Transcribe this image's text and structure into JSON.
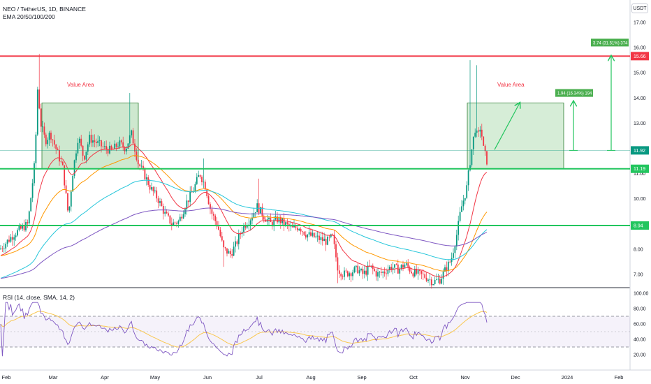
{
  "header": {
    "symbol_line": "NEO / TetherUS, 1D, BINANCE",
    "indicator_line": "EMA 20/50/100/200",
    "currency_button": "USDT"
  },
  "rsi_panel": {
    "title": "RSI (14, close, SMA, 14, 2)",
    "tick_labels": [
      "100.00",
      "80.00",
      "60.00",
      "40.00",
      "20.00"
    ]
  },
  "price_axis": {
    "tick_labels": [
      "17.00",
      "16.00",
      "15.00",
      "14.00",
      "13.00",
      "12.00",
      "11.00",
      "10.00",
      "9.00",
      "8.00",
      "7.00"
    ]
  },
  "time_axis": {
    "tick_labels": [
      "Feb",
      "Mar",
      "Apr",
      "May",
      "Jun",
      "Jul",
      "Aug",
      "Sep",
      "Oct",
      "Nov",
      "Dec",
      "2024",
      "Feb"
    ]
  },
  "annotations": {
    "value_area_left": "Value Area",
    "value_area_right": "Value Area",
    "target_1": "1.94 (16.34%) 194",
    "target_2": "3.74 (31.51%) 374"
  },
  "levels": {
    "resistance": {
      "label": "15.66",
      "value": 15.66,
      "color": "#f23645"
    },
    "last_price": {
      "label": "11.92",
      "value": 11.92,
      "color": "#089981"
    },
    "support_high": {
      "label": "11.19",
      "value": 11.19,
      "color": "#22c55e"
    },
    "support_low": {
      "label": "8.94",
      "value": 8.94,
      "color": "#22c55e"
    }
  },
  "colors": {
    "up_candle": "#089981",
    "down_candle": "#f23645",
    "ema20": "#f23645",
    "ema50": "#ff9800",
    "ema100": "#26c6da",
    "ema200": "#7e57c2",
    "rsi_line": "#7e57c2",
    "rsi_ma": "#f9c74f",
    "value_area_fill": "#a5d6a7",
    "arrow": "#22c55e"
  },
  "chart_data": {
    "type": "candlestick",
    "price_range": [
      6.6,
      17.3
    ],
    "rsi_range": [
      10,
      100
    ],
    "rsi_bands": [
      30,
      70
    ],
    "series": [
      {
        "name": "EMA 20/50/100/200"
      }
    ],
    "key_prices": {
      "value_area_left_top": 13.8,
      "value_area_left_bottom": 11.2,
      "value_area_right_top": 13.8,
      "value_area_right_bottom": 11.2,
      "feb_high": 15.75,
      "nov_high": 15.5,
      "aug_low": 6.65,
      "oct_low": 6.65
    }
  }
}
